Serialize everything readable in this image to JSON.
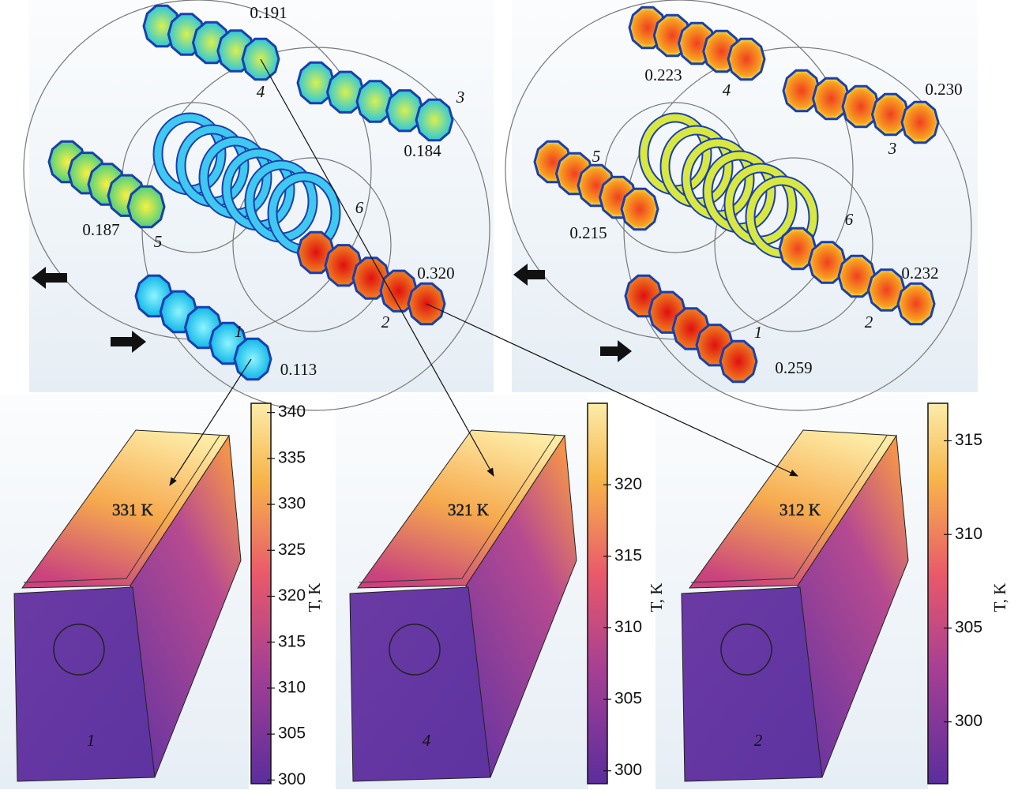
{
  "top_panels": [
    {
      "rods": [
        {
          "id": "1",
          "value": "0.113"
        },
        {
          "id": "2",
          "value": "0.320"
        },
        {
          "id": "3",
          "value": "0.184"
        },
        {
          "id": "4",
          "value": "0.191"
        },
        {
          "id": "5",
          "value": "0.187"
        }
      ],
      "coil_id": "6"
    },
    {
      "rods": [
        {
          "id": "1",
          "value": "0.259"
        },
        {
          "id": "2",
          "value": "0.232"
        },
        {
          "id": "3",
          "value": "0.230"
        },
        {
          "id": "4",
          "value": "0.223"
        },
        {
          "id": "5",
          "value": "0.215"
        }
      ],
      "coil_id": "6"
    }
  ],
  "bottom_panels": [
    {
      "id": "1",
      "temperature": "331 K",
      "colorbar": {
        "label": "T, K",
        "lim": [
          299.6,
          341
        ],
        "ticks": [
          300,
          305,
          310,
          315,
          320,
          325,
          330,
          335,
          340
        ]
      }
    },
    {
      "id": "4",
      "temperature": "321 K",
      "colorbar": {
        "label": "T, K",
        "lim": [
          299.1,
          325.7
        ],
        "ticks": [
          300,
          305,
          310,
          315,
          320
        ]
      }
    },
    {
      "id": "2",
      "temperature": "312 K",
      "colorbar": {
        "label": "T, K",
        "lim": [
          296.7,
          317
        ],
        "ticks": [
          300,
          305,
          310,
          315
        ]
      }
    }
  ]
}
